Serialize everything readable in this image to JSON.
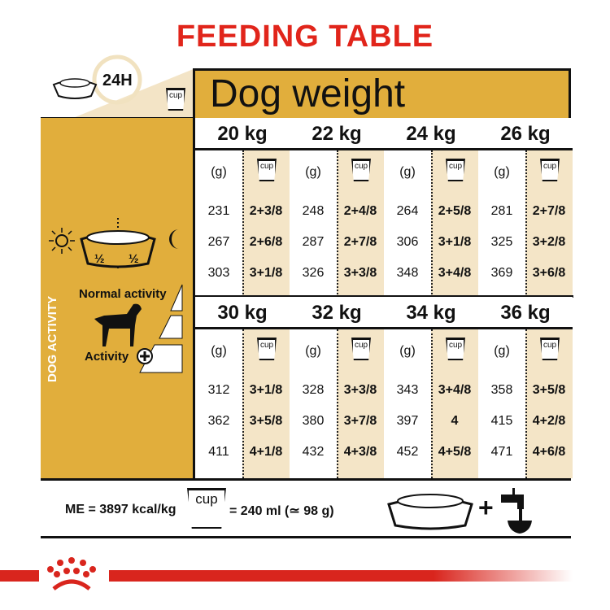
{
  "title": "FEEDING TABLE",
  "header": {
    "period": "24H",
    "dog_weight": "Dog weight",
    "cup": "cup"
  },
  "left_panel": {
    "half_day": "½",
    "half_night": "½",
    "normal_activity": "Normal activity",
    "activity": "Activity",
    "dog_activity": "DOG ACTIVITY"
  },
  "table": {
    "unit_grams": "(g)",
    "unit_cup": "cup",
    "blocks": [
      {
        "columns": [
          {
            "weight": "20 kg",
            "rows": [
              [
                "231",
                "2+3/8"
              ],
              [
                "267",
                "2+6/8"
              ],
              [
                "303",
                "3+1/8"
              ]
            ]
          },
          {
            "weight": "22 kg",
            "rows": [
              [
                "248",
                "2+4/8"
              ],
              [
                "287",
                "2+7/8"
              ],
              [
                "326",
                "3+3/8"
              ]
            ]
          },
          {
            "weight": "24 kg",
            "rows": [
              [
                "264",
                "2+5/8"
              ],
              [
                "306",
                "3+1/8"
              ],
              [
                "348",
                "3+4/8"
              ]
            ]
          },
          {
            "weight": "26 kg",
            "rows": [
              [
                "281",
                "2+7/8"
              ],
              [
                "325",
                "3+2/8"
              ],
              [
                "369",
                "3+6/8"
              ]
            ]
          }
        ]
      },
      {
        "columns": [
          {
            "weight": "30 kg",
            "rows": [
              [
                "312",
                "3+1/8"
              ],
              [
                "362",
                "3+5/8"
              ],
              [
                "411",
                "4+1/8"
              ]
            ]
          },
          {
            "weight": "32 kg",
            "rows": [
              [
                "328",
                "3+3/8"
              ],
              [
                "380",
                "3+7/8"
              ],
              [
                "432",
                "4+3/8"
              ]
            ]
          },
          {
            "weight": "34 kg",
            "rows": [
              [
                "343",
                "3+4/8"
              ],
              [
                "397",
                "4"
              ],
              [
                "452",
                "4+5/8"
              ]
            ]
          },
          {
            "weight": "36 kg",
            "rows": [
              [
                "358",
                "3+5/8"
              ],
              [
                "415",
                "4+2/8"
              ],
              [
                "471",
                "4+6/8"
              ]
            ]
          }
        ]
      }
    ]
  },
  "footer": {
    "energy": "ME = 3897 kcal/kg",
    "cup": "cup",
    "cup_equiv": "= 240 ml (≃ 98 g)"
  },
  "colors": {
    "brand_red": "#e1251b",
    "gold": "#e1ae3c",
    "cream": "#f4e5c7"
  }
}
